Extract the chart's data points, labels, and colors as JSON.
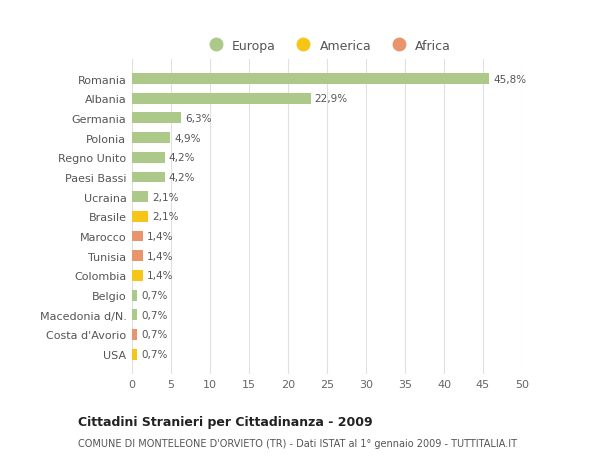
{
  "categories": [
    "Romania",
    "Albania",
    "Germania",
    "Polonia",
    "Regno Unito",
    "Paesi Bassi",
    "Ucraina",
    "Brasile",
    "Marocco",
    "Tunisia",
    "Colombia",
    "Belgio",
    "Macedonia d/N.",
    "Costa d'Avorio",
    "USA"
  ],
  "values": [
    45.8,
    22.9,
    6.3,
    4.9,
    4.2,
    4.2,
    2.1,
    2.1,
    1.4,
    1.4,
    1.4,
    0.7,
    0.7,
    0.7,
    0.7
  ],
  "labels": [
    "45,8%",
    "22,9%",
    "6,3%",
    "4,9%",
    "4,2%",
    "4,2%",
    "2,1%",
    "2,1%",
    "1,4%",
    "1,4%",
    "1,4%",
    "0,7%",
    "0,7%",
    "0,7%",
    "0,7%"
  ],
  "continents": [
    "Europa",
    "Europa",
    "Europa",
    "Europa",
    "Europa",
    "Europa",
    "Europa",
    "America",
    "Africa",
    "Africa",
    "America",
    "Europa",
    "Europa",
    "Africa",
    "America"
  ],
  "colors": {
    "Europa": "#adc98a",
    "America": "#f5c518",
    "Africa": "#e8956d"
  },
  "legend_order": [
    "Europa",
    "America",
    "Africa"
  ],
  "legend_colors": [
    "#adc98a",
    "#f5c518",
    "#e8956d"
  ],
  "title": "Cittadini Stranieri per Cittadinanza - 2009",
  "subtitle": "COMUNE DI MONTELEONE D'ORVIETO (TR) - Dati ISTAT al 1° gennaio 2009 - TUTTITALIA.IT",
  "xlim": [
    0,
    50
  ],
  "xticks": [
    0,
    5,
    10,
    15,
    20,
    25,
    30,
    35,
    40,
    45,
    50
  ],
  "bg_color": "#ffffff",
  "grid_color": "#e0e0e0"
}
